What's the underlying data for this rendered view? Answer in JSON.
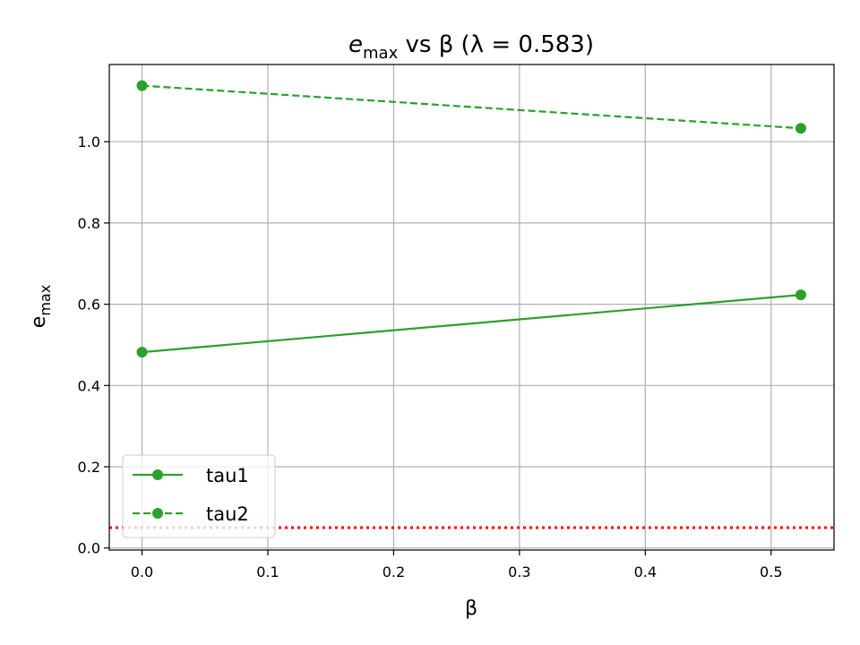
{
  "chart_data": {
    "type": "line",
    "title": {
      "main": "e",
      "sub": "max",
      "rest": " vs β (λ = 0.583)"
    },
    "xlabel": "β",
    "ylabel": {
      "main": "e",
      "sub": "max"
    },
    "xlim": [
      -0.026,
      0.55
    ],
    "ylim": [
      -0.005,
      1.19
    ],
    "xticks": [
      0.0,
      0.1,
      0.2,
      0.3,
      0.4,
      0.5
    ],
    "xtick_labels": [
      "0.0",
      "0.1",
      "0.2",
      "0.3",
      "0.4",
      "0.5"
    ],
    "yticks": [
      0.0,
      0.2,
      0.4,
      0.6,
      0.8,
      1.0
    ],
    "ytick_labels": [
      "0.0",
      "0.2",
      "0.4",
      "0.6",
      "0.8",
      "1.0"
    ],
    "grid": true,
    "legend_position": "lower-left",
    "series": [
      {
        "name": "tau1",
        "x": [
          0.0,
          0.5236
        ],
        "y": [
          0.482,
          0.623
        ],
        "color": "#2ca02c",
        "style": "solid",
        "marker": "circle"
      },
      {
        "name": "tau2",
        "x": [
          0.0,
          0.5236
        ],
        "y": [
          1.138,
          1.033
        ],
        "color": "#2ca02c",
        "style": "dashed",
        "marker": "circle"
      }
    ],
    "reference_lines": [
      {
        "axis": "y",
        "value": 0.05,
        "color": "#ff0000",
        "style": "dotted"
      }
    ]
  }
}
